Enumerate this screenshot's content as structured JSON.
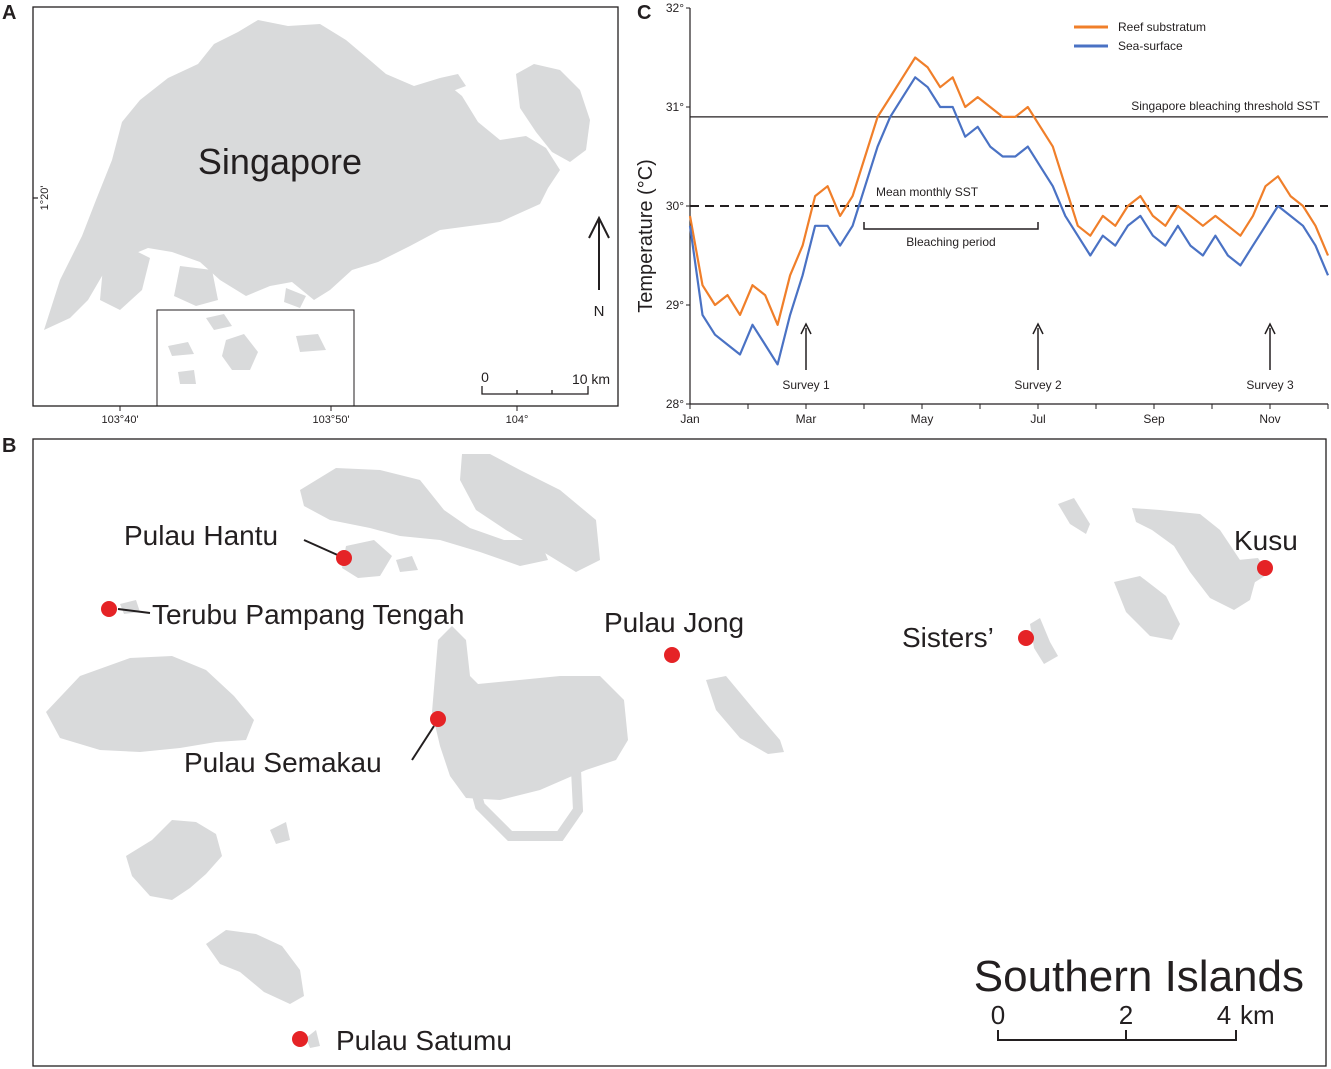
{
  "panels": {
    "a": {
      "letter": "A"
    },
    "b": {
      "letter": "B"
    },
    "c": {
      "letter": "C"
    }
  },
  "map_a": {
    "title": "Singapore",
    "lat_label": "1°20'",
    "lon_ticks": [
      "103°40'",
      "103°50'",
      "104°"
    ],
    "north_label": "N",
    "scale": {
      "zero": "0",
      "max": "10 km"
    }
  },
  "map_b": {
    "title": "Southern Islands",
    "scale": {
      "labels": [
        "0",
        "2",
        "4"
      ],
      "unit": "km"
    },
    "sites": [
      {
        "id": "pulau-hantu",
        "label": "Pulau Hantu"
      },
      {
        "id": "terubu-pampang-tengah",
        "label": "Terubu Pampang Tengah"
      },
      {
        "id": "pulau-jong",
        "label": "Pulau Jong"
      },
      {
        "id": "sisters",
        "label": "Sisters’"
      },
      {
        "id": "kusu",
        "label": "Kusu"
      },
      {
        "id": "pulau-semakau",
        "label": "Pulau Semakau"
      },
      {
        "id": "pulau-satumu",
        "label": "Pulau Satumu"
      }
    ]
  },
  "colors": {
    "land": "#d9dadb",
    "site_marker": "#e52326",
    "reef_series": "#f07f2a",
    "sea_series": "#4a72c4"
  },
  "chart_data": {
    "type": "line",
    "title": "",
    "xlabel": "",
    "ylabel": "Temperature (°C)",
    "ylim": [
      28,
      32
    ],
    "yticks": [
      "28°",
      "29°",
      "30°",
      "31°",
      "32°"
    ],
    "xticks": [
      "Jan",
      "Mar",
      "May",
      "Jul",
      "Sep",
      "Nov"
    ],
    "x_unit": "week",
    "x": [
      1,
      2,
      3,
      4,
      5,
      6,
      7,
      8,
      9,
      10,
      11,
      12,
      13,
      14,
      15,
      16,
      17,
      18,
      19,
      20,
      21,
      22,
      23,
      24,
      25,
      26,
      27,
      28,
      29,
      30,
      31,
      32,
      33,
      34,
      35,
      36,
      37,
      38,
      39,
      40,
      41,
      42,
      43,
      44,
      45,
      46,
      47,
      48,
      49,
      50,
      51,
      52
    ],
    "series": [
      {
        "name": "Reef substratum",
        "color": "#f07f2a",
        "values": [
          29.9,
          29.2,
          29.0,
          29.1,
          28.9,
          29.2,
          29.1,
          28.8,
          29.3,
          29.6,
          30.1,
          30.2,
          29.9,
          30.1,
          30.5,
          30.9,
          31.1,
          31.3,
          31.5,
          31.4,
          31.2,
          31.3,
          31.0,
          31.1,
          31.0,
          30.9,
          30.9,
          31.0,
          30.8,
          30.6,
          30.2,
          29.8,
          29.7,
          29.9,
          29.8,
          30.0,
          30.1,
          29.9,
          29.8,
          30.0,
          29.9,
          29.8,
          29.9,
          29.8,
          29.7,
          29.9,
          30.2,
          30.3,
          30.1,
          30.0,
          29.8,
          29.5
        ]
      },
      {
        "name": "Sea-surface",
        "color": "#4a72c4",
        "values": [
          29.8,
          28.9,
          28.7,
          28.6,
          28.5,
          28.8,
          28.6,
          28.4,
          28.9,
          29.3,
          29.8,
          29.8,
          29.6,
          29.8,
          30.2,
          30.6,
          30.9,
          31.1,
          31.3,
          31.2,
          31.0,
          31.0,
          30.7,
          30.8,
          30.6,
          30.5,
          30.5,
          30.6,
          30.4,
          30.2,
          29.9,
          29.7,
          29.5,
          29.7,
          29.6,
          29.8,
          29.9,
          29.7,
          29.6,
          29.8,
          29.6,
          29.5,
          29.7,
          29.5,
          29.4,
          29.6,
          29.8,
          30.0,
          29.9,
          29.8,
          29.6,
          29.3
        ]
      }
    ],
    "legend_position": "top-right",
    "reference_lines": [
      {
        "label": "Singapore bleaching threshold SST",
        "value": 30.9,
        "style": "solid"
      },
      {
        "label": "Mean monthly SST",
        "value": 30.0,
        "style": "dashed"
      }
    ],
    "annotations": {
      "bleaching_period": {
        "label": "Bleaching period",
        "from": "Apr",
        "to": "Jul"
      },
      "surveys": [
        {
          "label": "Survey 1",
          "month": "Mar"
        },
        {
          "label": "Survey 2",
          "month": "Jul"
        },
        {
          "label": "Survey 3",
          "month": "Nov"
        }
      ]
    }
  }
}
